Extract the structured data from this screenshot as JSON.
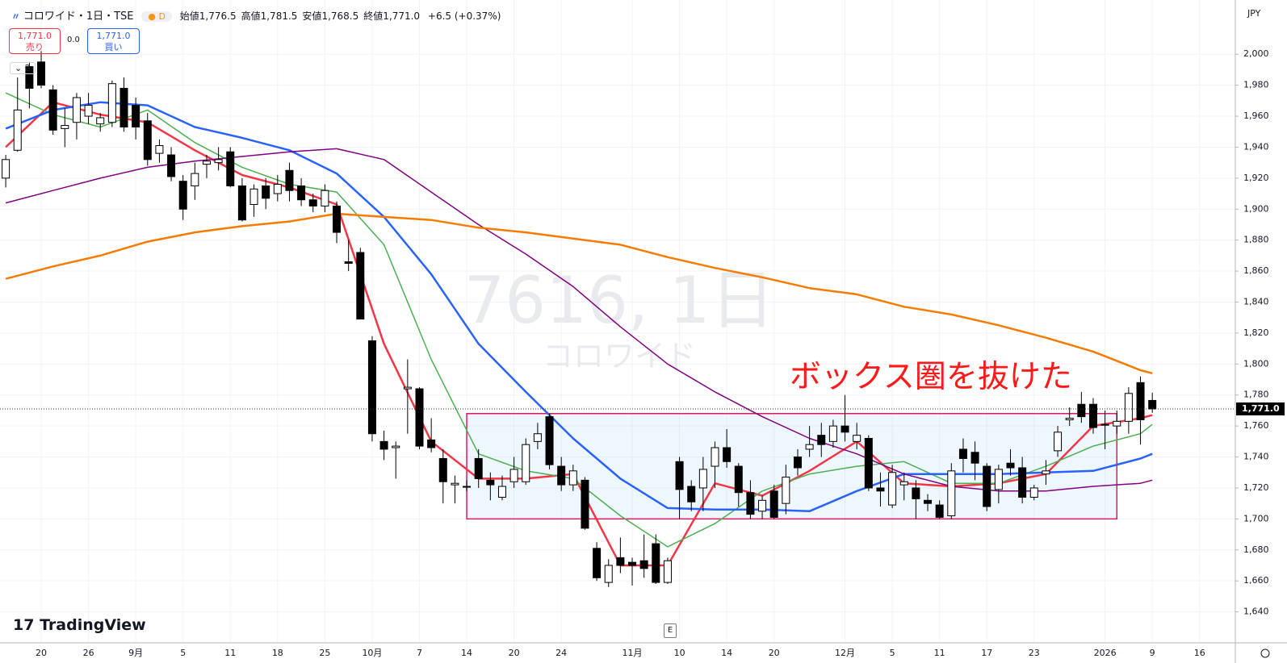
{
  "chart_data": {
    "type": "candlestick",
    "header": {
      "symbol": "コロワイド・1日・TSE",
      "interval": "D",
      "ohlc": [
        {
          "label": "始値",
          "value": "1,776.5"
        },
        {
          "label": "高値",
          "value": "1,781.5"
        },
        {
          "label": "安値",
          "value": "1,768.5"
        },
        {
          "label": "終値",
          "value": "1,771.0"
        }
      ],
      "change": "+6.5 (+0.37%)",
      "indicator_count": "2",
      "currency": "JPY",
      "logo": "TradingView"
    },
    "trade": {
      "sell_price": "1,771.0",
      "sell_label": "売り",
      "spread": "0.0",
      "buy_price": "1,771.0",
      "buy_label": "買い"
    },
    "watermark": {
      "symbol": "7616, 1日",
      "name": "コロワイド"
    },
    "annotation": "ボックス圏を抜けた",
    "earnings": {
      "index": 56,
      "label": "E"
    },
    "categories": [
      null,
      null,
      null,
      "20",
      null,
      null,
      null,
      "26",
      null,
      null,
      null,
      "9月",
      null,
      null,
      null,
      "5",
      null,
      null,
      null,
      "11",
      null,
      null,
      null,
      "18",
      null,
      null,
      null,
      "25",
      null,
      null,
      null,
      "10月",
      null,
      null,
      null,
      "7",
      null,
      null,
      null,
      "14",
      null,
      null,
      null,
      "20",
      null,
      null,
      null,
      "24",
      null,
      null,
      null,
      null,
      null,
      "11月",
      null,
      null,
      null,
      "10",
      null,
      null,
      null,
      "14",
      null,
      null,
      null,
      "20",
      null,
      null,
      null,
      null,
      null,
      "12月",
      null,
      null,
      null,
      "5",
      null,
      null,
      null,
      "11",
      null,
      null,
      null,
      "17",
      null,
      null,
      null,
      "23",
      null,
      null,
      null,
      null,
      null,
      "2026",
      null,
      null,
      null,
      "9",
      null,
      null,
      null,
      "16"
    ],
    "open": [
      1920,
      1938,
      1992,
      1995,
      1977,
      1952,
      1956,
      1960,
      1955,
      1956,
      1978,
      1967,
      1957,
      1936,
      1935,
      1918,
      1915,
      1929,
      1930,
      1937,
      1915,
      1903,
      1915,
      1910,
      1925,
      1915,
      1906,
      1902,
      1902,
      1866,
      1872,
      1815,
      1750,
      1746,
      1784,
      1784,
      1751,
      1739,
      1722,
      1721,
      1739,
      1725,
      1714,
      1724,
      1724,
      1750,
      1766,
      1734,
      1722,
      1725,
      1681,
      1659,
      1675,
      1672,
      1673,
      1684,
      1659,
      1737,
      1721,
      1720,
      1734,
      1746,
      1734,
      1717,
      1705,
      1718,
      1710,
      1740,
      1745,
      1754,
      1750,
      1760,
      1750,
      1752,
      1720,
      1709,
      1722,
      1720,
      1712,
      1709,
      1702,
      1745,
      1743,
      1734,
      1719,
      1736,
      1733,
      1714,
      1729,
      1744,
      1764,
      1774,
      1774,
      1761,
      1760,
      1763,
      1788,
      1776.5,
      null,
      null,
      null,
      null
    ],
    "high": [
      1935,
      1985,
      1995,
      2002,
      1980,
      1965,
      1975,
      1975,
      1962,
      1983,
      1985,
      1972,
      1962,
      1945,
      1940,
      1922,
      1930,
      1935,
      1940,
      1940,
      1920,
      1916,
      1920,
      1922,
      1930,
      1920,
      1910,
      1916,
      1905,
      1880,
      1875,
      1818,
      1757,
      1750,
      1803,
      1785,
      1765,
      1745,
      1728,
      1725,
      1745,
      1730,
      1728,
      1740,
      1752,
      1762,
      1768,
      1740,
      1735,
      1727,
      1685,
      1674,
      1688,
      1675,
      1690,
      1690,
      1675,
      1740,
      1725,
      1740,
      1750,
      1758,
      1736,
      1725,
      1715,
      1722,
      1735,
      1745,
      1760,
      1762,
      1764,
      1780,
      1762,
      1754,
      1730,
      1735,
      1730,
      1725,
      1716,
      1712,
      1736,
      1752,
      1750,
      1736,
      1735,
      1745,
      1740,
      1722,
      1738,
      1760,
      1772,
      1782,
      1778,
      1770,
      1770,
      1785,
      1792,
      1781.5,
      null,
      null,
      null,
      null
    ],
    "low": [
      1914,
      1937,
      1965,
      1978,
      1948,
      1940,
      1945,
      1955,
      1950,
      1953,
      1950,
      1945,
      1928,
      1930,
      1918,
      1893,
      1906,
      1920,
      1925,
      1914,
      1892,
      1895,
      1900,
      1905,
      1905,
      1902,
      1898,
      1898,
      1878,
      1860,
      1829,
      1750,
      1738,
      1726,
      1755,
      1745,
      1743,
      1710,
      1710,
      1718,
      1720,
      1712,
      1712,
      1720,
      1722,
      1745,
      1732,
      1718,
      1718,
      1693,
      1660,
      1656,
      1665,
      1657,
      1662,
      1658,
      1658,
      1700,
      1705,
      1705,
      1720,
      1733,
      1708,
      1700,
      1700,
      1700,
      1703,
      1728,
      1740,
      1740,
      1746,
      1750,
      1745,
      1718,
      1708,
      1707,
      1712,
      1700,
      1705,
      1700,
      1700,
      1730,
      1725,
      1705,
      1710,
      1728,
      1710,
      1712,
      1722,
      1740,
      1760,
      1762,
      1755,
      1745,
      1755,
      1755,
      1748,
      1768.5,
      null,
      null,
      null,
      null
    ],
    "close": [
      1932,
      1964,
      1978,
      1980,
      1951,
      1954,
      1972,
      1967,
      1959,
      1981,
      1953,
      1953,
      1932,
      1941,
      1921,
      1900,
      1923,
      1931,
      1932,
      1915,
      1893,
      1913,
      1907,
      1916,
      1912,
      1906,
      1902,
      1912,
      1885,
      1865,
      1829,
      1755,
      1745,
      1747,
      1785,
      1747,
      1746,
      1724,
      1723,
      1721,
      1726,
      1722,
      1721,
      1732,
      1748,
      1755,
      1735,
      1722,
      1731,
      1694,
      1662,
      1670,
      1670,
      1670,
      1668,
      1659,
      1673,
      1719,
      1711,
      1732,
      1746,
      1737,
      1717,
      1703,
      1712,
      1701,
      1727,
      1733,
      1748,
      1748,
      1760,
      1756,
      1754,
      1720,
      1718,
      1730,
      1724,
      1713,
      1710,
      1701,
      1731,
      1739,
      1736,
      1708,
      1732,
      1733,
      1714,
      1720,
      1731,
      1756,
      1765,
      1766,
      1759,
      1761,
      1763,
      1781,
      1764,
      1771.0,
      null,
      null,
      null,
      null
    ],
    "up_color": "#ffffff",
    "down_color": "#000000",
    "series": [
      {
        "color": "#f23645",
        "x": [
          0,
          4,
          8,
          12,
          16,
          20,
          24,
          28,
          32,
          36,
          40,
          44,
          48,
          52,
          56,
          60,
          64,
          68,
          72,
          76,
          80,
          84,
          88,
          92,
          96,
          97
        ],
        "values": [
          1940,
          1969,
          1961,
          1956,
          1938,
          1922,
          1914,
          1903,
          1813,
          1750,
          1726,
          1726,
          1729,
          1670,
          1670,
          1723,
          1715,
          1731,
          1750,
          1723,
          1721,
          1723,
          1729,
          1760,
          1765,
          1767
        ]
      },
      {
        "color": "#4caf50",
        "x": [
          0,
          4,
          8,
          12,
          16,
          20,
          24,
          28,
          32,
          36,
          40,
          44,
          48,
          52,
          56,
          60,
          64,
          68,
          72,
          76,
          80,
          84,
          88,
          92,
          96,
          97
        ],
        "values": [
          1975,
          1961,
          1953,
          1964,
          1943,
          1927,
          1916,
          1911,
          1877,
          1803,
          1742,
          1731,
          1726,
          1702,
          1682,
          1697,
          1718,
          1729,
          1734,
          1737,
          1723,
          1723,
          1734,
          1747,
          1755,
          1761
        ]
      },
      {
        "color": "#2962ff",
        "x": [
          0,
          4,
          8,
          12,
          16,
          20,
          24,
          28,
          32,
          36,
          40,
          44,
          48,
          52,
          56,
          60,
          64,
          68,
          72,
          76,
          80,
          84,
          88,
          92,
          96,
          97
        ],
        "values": [
          1952,
          1964,
          1969,
          1967,
          1953,
          1946,
          1938,
          1923,
          1895,
          1858,
          1813,
          1782,
          1752,
          1726,
          1707,
          1706,
          1706,
          1705,
          1718,
          1729,
          1729,
          1729,
          1730,
          1731,
          1739,
          1742
        ]
      },
      {
        "color": "#800080",
        "x": [
          0,
          4,
          8,
          12,
          16,
          20,
          24,
          28,
          32,
          36,
          40,
          44,
          48,
          52,
          56,
          60,
          64,
          68,
          72,
          76,
          80,
          84,
          88,
          92,
          96,
          97
        ],
        "values": [
          1904,
          1912,
          1920,
          1927,
          1931,
          1934,
          1937,
          1939,
          1932,
          1911,
          1890,
          1871,
          1850,
          1824,
          1800,
          1782,
          1766,
          1752,
          1742,
          1729,
          1721,
          1718,
          1718,
          1721,
          1723,
          1725
        ]
      },
      {
        "color": "#f57c00",
        "x": [
          0,
          4,
          8,
          12,
          16,
          20,
          24,
          28,
          32,
          36,
          40,
          44,
          48,
          52,
          56,
          60,
          64,
          68,
          72,
          76,
          80,
          84,
          88,
          92,
          96,
          97
        ],
        "values": [
          1855,
          1863,
          1870,
          1879,
          1885,
          1889,
          1892,
          1897,
          1895,
          1893,
          1888,
          1885,
          1881,
          1877,
          1869,
          1862,
          1856,
          1849,
          1845,
          1837,
          1832,
          1825,
          1817,
          1808,
          1796,
          1794
        ]
      }
    ],
    "box": {
      "start": 39,
      "end": 94,
      "low": 1700,
      "high": 1768,
      "color": "#d81b60"
    },
    "last_price": {
      "value": 1771.0,
      "label": "1,771.0"
    },
    "ylim": [
      1620,
      2035
    ],
    "yticks": [
      {
        "value": 1640,
        "label": "1,640"
      },
      {
        "value": 1660,
        "label": "1,660"
      },
      {
        "value": 1680,
        "label": "1,680"
      },
      {
        "value": 1700,
        "label": "1,700"
      },
      {
        "value": 1720,
        "label": "1,720"
      },
      {
        "value": 1740,
        "label": "1,740"
      },
      {
        "value": 1760,
        "label": "1,760"
      },
      {
        "value": 1780,
        "label": "1,780"
      },
      {
        "value": 1800,
        "label": "1,800"
      },
      {
        "value": 1820,
        "label": "1,820"
      },
      {
        "value": 1840,
        "label": "1,840"
      },
      {
        "value": 1860,
        "label": "1,860"
      },
      {
        "value": 1880,
        "label": "1,880"
      },
      {
        "value": 1900,
        "label": "1,900"
      },
      {
        "value": 1920,
        "label": "1,920"
      },
      {
        "value": 1940,
        "label": "1,940"
      },
      {
        "value": 1960,
        "label": "1,960"
      },
      {
        "value": 1980,
        "label": "1,980"
      },
      {
        "value": 2000,
        "label": "2,000"
      }
    ],
    "grid": true
  }
}
